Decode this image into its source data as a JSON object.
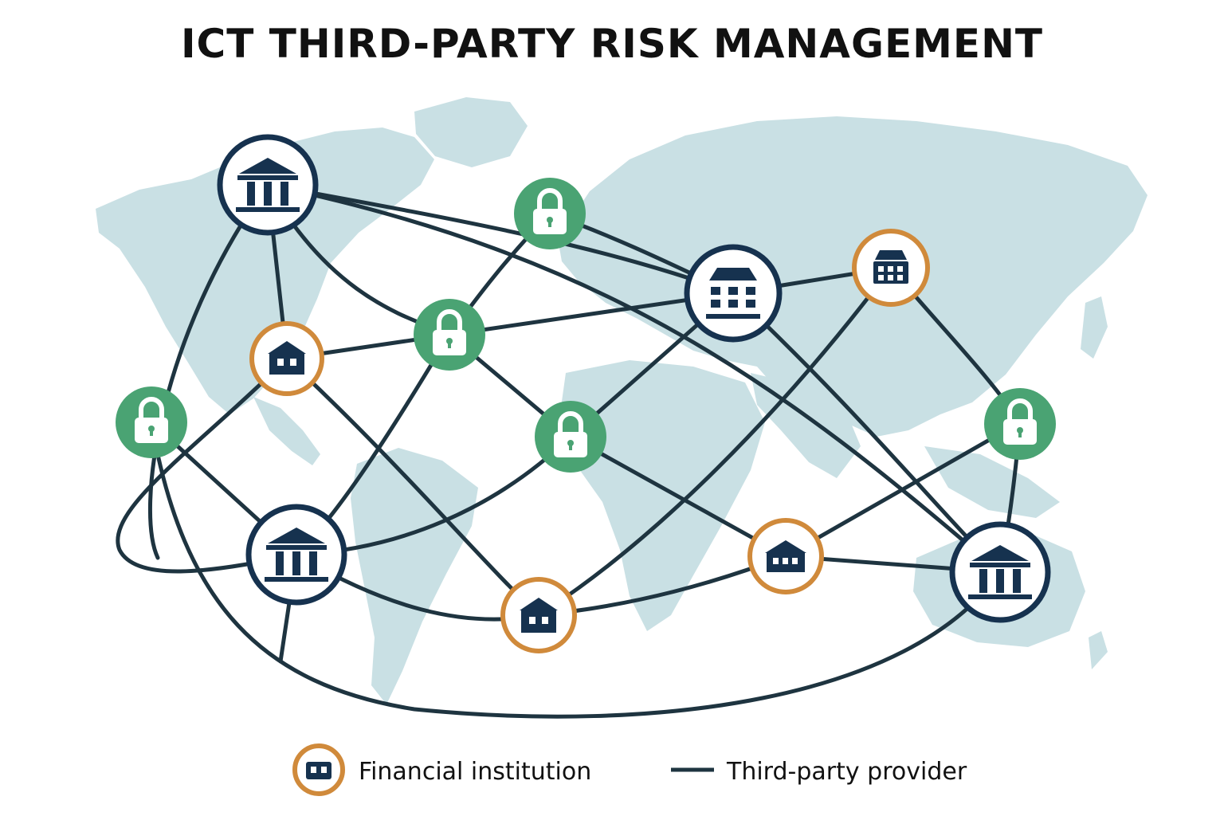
{
  "title": "ICT THIRD-PARTY RISK MANAGEMENT",
  "colors": {
    "map": "#c9e0e4",
    "line": "#1e3440",
    "navy": "#16324f",
    "green": "#4aa373",
    "orange": "#d08a3b",
    "white": "#ffffff"
  },
  "node_kinds": {
    "bank": "bank-icon",
    "building": "office-building-icon",
    "house": "branch-house-icon",
    "lock": "padlock-icon"
  },
  "legend": {
    "financial_institution": "Financial institution",
    "third_party_provider": "Third-party provider"
  }
}
